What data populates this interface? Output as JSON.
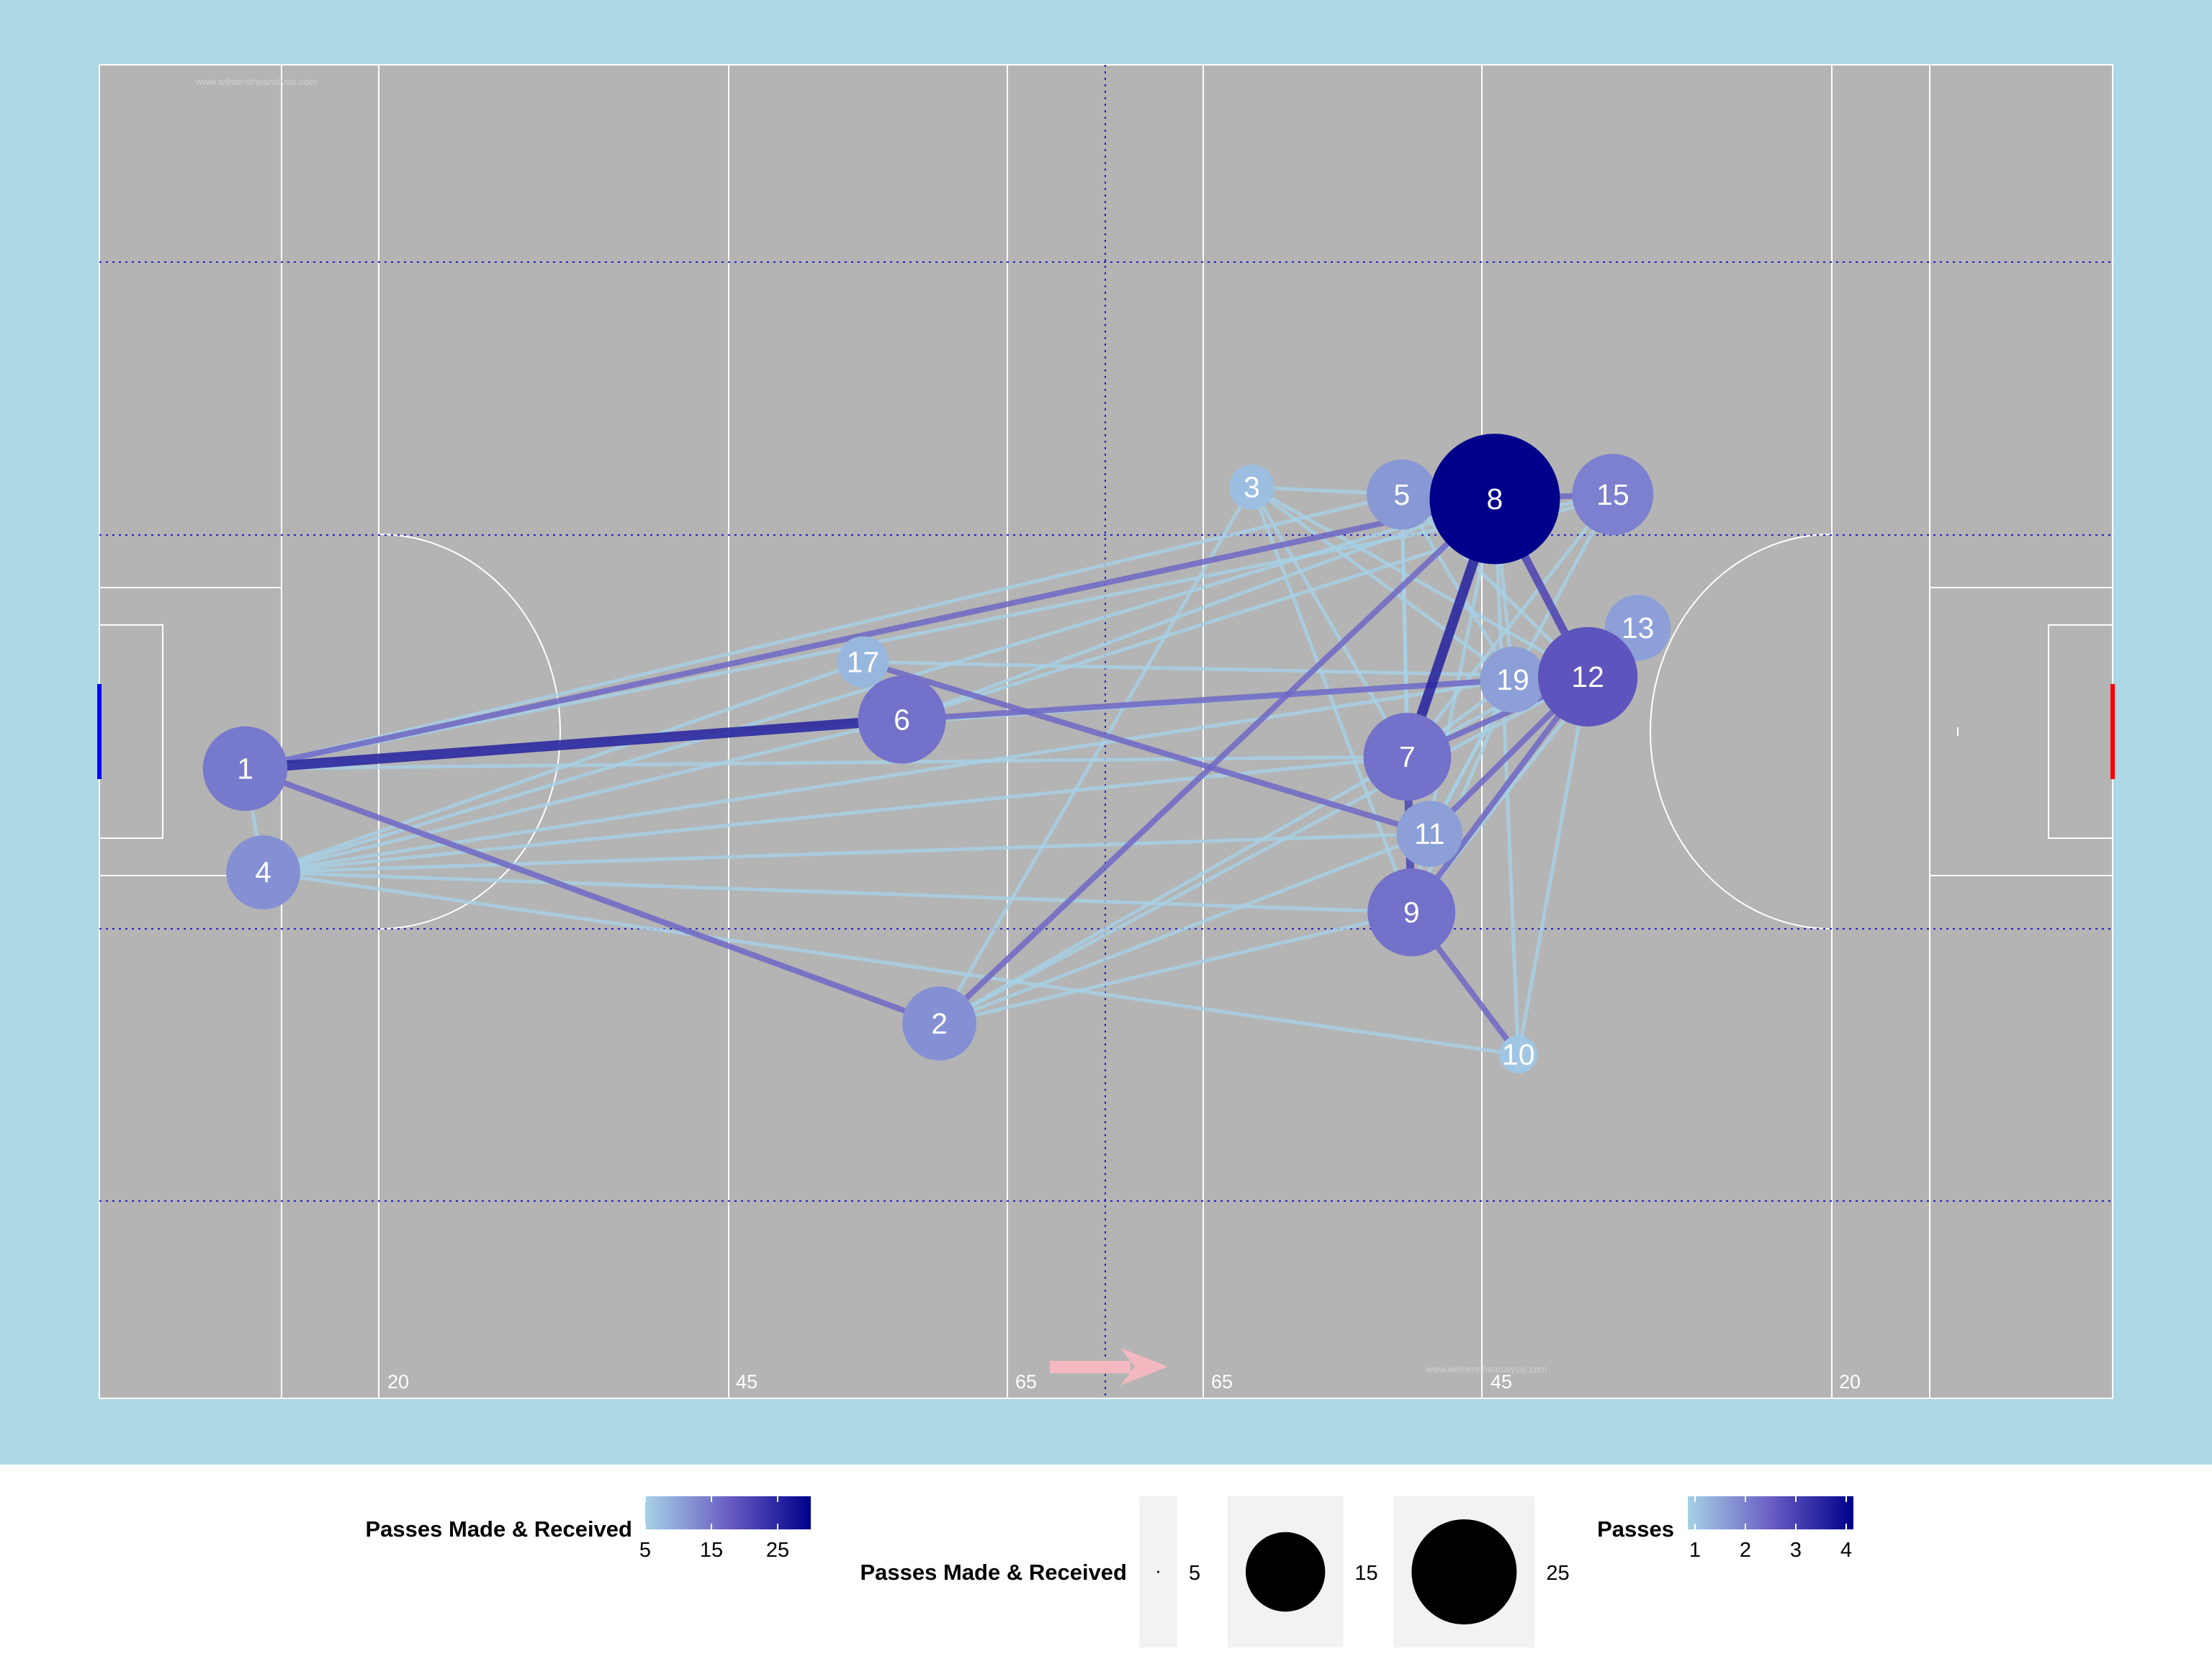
{
  "watermark": "www.wilmerstheanalysis.com",
  "colors": {
    "panel_bg": "#add8e6",
    "pitch_bg": "#b4b4b4",
    "pitch_lines": "#ffffff",
    "guide_lines": "#2020cc",
    "left_goal": "#0000ff",
    "right_goal": "#ff0000",
    "arrow": "#f4b8c0",
    "low": "#a6d1e6",
    "mid": "#6a5fc4",
    "high": "#00008b"
  },
  "chart_data": {
    "type": "network",
    "pitch": {
      "xlim": [
        0,
        145
      ],
      "ylim": [
        0,
        90
      ]
    },
    "yard_markers": [
      "20",
      "45",
      "65",
      "65",
      "45",
      "20"
    ],
    "nodes": [
      {
        "label": "1",
        "x": 10.5,
        "y": 42.5,
        "passes": 12
      },
      {
        "label": "2",
        "x": 60.5,
        "y": 25.3,
        "passes": 9
      },
      {
        "label": "3",
        "x": 83.0,
        "y": 61.5,
        "passes": 3
      },
      {
        "label": "4",
        "x": 11.8,
        "y": 35.5,
        "passes": 9
      },
      {
        "label": "5",
        "x": 93.8,
        "y": 61.0,
        "passes": 8
      },
      {
        "label": "6",
        "x": 57.8,
        "y": 45.8,
        "passes": 13
      },
      {
        "label": "7",
        "x": 94.2,
        "y": 43.3,
        "passes": 13
      },
      {
        "label": "8",
        "x": 100.5,
        "y": 60.7,
        "passes": 30
      },
      {
        "label": "9",
        "x": 94.5,
        "y": 32.8,
        "passes": 13
      },
      {
        "label": "10",
        "x": 102.2,
        "y": 23.2,
        "passes": 2
      },
      {
        "label": "11",
        "x": 95.8,
        "y": 38.1,
        "passes": 7
      },
      {
        "label": "12",
        "x": 107.2,
        "y": 48.7,
        "passes": 17
      },
      {
        "label": "13",
        "x": 110.8,
        "y": 52.0,
        "passes": 7
      },
      {
        "label": "15",
        "x": 109.0,
        "y": 61.0,
        "passes": 11
      },
      {
        "label": "17",
        "x": 55.0,
        "y": 49.7,
        "passes": 4
      },
      {
        "label": "19",
        "x": 101.8,
        "y": 48.5,
        "passes": 7
      }
    ],
    "edges": [
      {
        "from": "1",
        "to": "6",
        "passes": 4
      },
      {
        "from": "1",
        "to": "2",
        "passes": 2
      },
      {
        "from": "1",
        "to": "8",
        "passes": 2
      },
      {
        "from": "1",
        "to": "5",
        "passes": 1
      },
      {
        "from": "1",
        "to": "15",
        "passes": 1
      },
      {
        "from": "1",
        "to": "19",
        "passes": 1
      },
      {
        "from": "1",
        "to": "4",
        "passes": 1
      },
      {
        "from": "1",
        "to": "7",
        "passes": 1
      },
      {
        "from": "6",
        "to": "19",
        "passes": 2
      },
      {
        "from": "6",
        "to": "8",
        "passes": 1
      },
      {
        "from": "6",
        "to": "15",
        "passes": 1
      },
      {
        "from": "6",
        "to": "4",
        "passes": 1
      },
      {
        "from": "17",
        "to": "11",
        "passes": 2
      },
      {
        "from": "17",
        "to": "4",
        "passes": 1
      },
      {
        "from": "17",
        "to": "12",
        "passes": 1
      },
      {
        "from": "4",
        "to": "8",
        "passes": 1
      },
      {
        "from": "4",
        "to": "9",
        "passes": 1
      },
      {
        "from": "4",
        "to": "11",
        "passes": 1
      },
      {
        "from": "4",
        "to": "10",
        "passes": 1
      },
      {
        "from": "4",
        "to": "7",
        "passes": 1
      },
      {
        "from": "4",
        "to": "19",
        "passes": 1
      },
      {
        "from": "2",
        "to": "8",
        "passes": 2
      },
      {
        "from": "2",
        "to": "3",
        "passes": 1
      },
      {
        "from": "2",
        "to": "7",
        "passes": 1
      },
      {
        "from": "2",
        "to": "9",
        "passes": 1
      },
      {
        "from": "2",
        "to": "12",
        "passes": 1
      },
      {
        "from": "2",
        "to": "11",
        "passes": 1
      },
      {
        "from": "3",
        "to": "7",
        "passes": 1
      },
      {
        "from": "3",
        "to": "19",
        "passes": 1
      },
      {
        "from": "3",
        "to": "12",
        "passes": 1
      },
      {
        "from": "3",
        "to": "9",
        "passes": 1
      },
      {
        "from": "5",
        "to": "12",
        "passes": 1
      },
      {
        "from": "5",
        "to": "7",
        "passes": 1
      },
      {
        "from": "5",
        "to": "19",
        "passes": 1
      },
      {
        "from": "5",
        "to": "9",
        "passes": 1
      },
      {
        "from": "8",
        "to": "7",
        "passes": 4
      },
      {
        "from": "8",
        "to": "12",
        "passes": 3
      },
      {
        "from": "8",
        "to": "15",
        "passes": 2
      },
      {
        "from": "8",
        "to": "9",
        "passes": 1
      },
      {
        "from": "8",
        "to": "19",
        "passes": 1
      },
      {
        "from": "8",
        "to": "10",
        "passes": 1
      },
      {
        "from": "8",
        "to": "3",
        "passes": 1
      },
      {
        "from": "7",
        "to": "9",
        "passes": 3
      },
      {
        "from": "7",
        "to": "12",
        "passes": 2
      },
      {
        "from": "7",
        "to": "19",
        "passes": 1
      },
      {
        "from": "7",
        "to": "13",
        "passes": 1
      },
      {
        "from": "9",
        "to": "10",
        "passes": 2
      },
      {
        "from": "9",
        "to": "12",
        "passes": 2
      },
      {
        "from": "9",
        "to": "19",
        "passes": 1
      },
      {
        "from": "11",
        "to": "12",
        "passes": 2
      },
      {
        "from": "11",
        "to": "19",
        "passes": 1
      },
      {
        "from": "12",
        "to": "13",
        "passes": 2
      },
      {
        "from": "12",
        "to": "19",
        "passes": 1
      },
      {
        "from": "15",
        "to": "7",
        "passes": 1
      },
      {
        "from": "15",
        "to": "11",
        "passes": 1
      },
      {
        "from": "13",
        "to": "9",
        "passes": 1
      },
      {
        "from": "10",
        "to": "12",
        "passes": 1
      }
    ],
    "legends": {
      "node_color": {
        "title": "Passes Made & Received",
        "ticks": [
          5,
          15,
          25
        ],
        "range": [
          5,
          30
        ]
      },
      "node_size": {
        "title": "Passes Made & Received",
        "ticks": [
          5,
          15,
          25
        ]
      },
      "edge_color": {
        "title": "Passes",
        "ticks": [
          1,
          2,
          3,
          4
        ],
        "range": [
          1,
          4
        ]
      }
    }
  }
}
